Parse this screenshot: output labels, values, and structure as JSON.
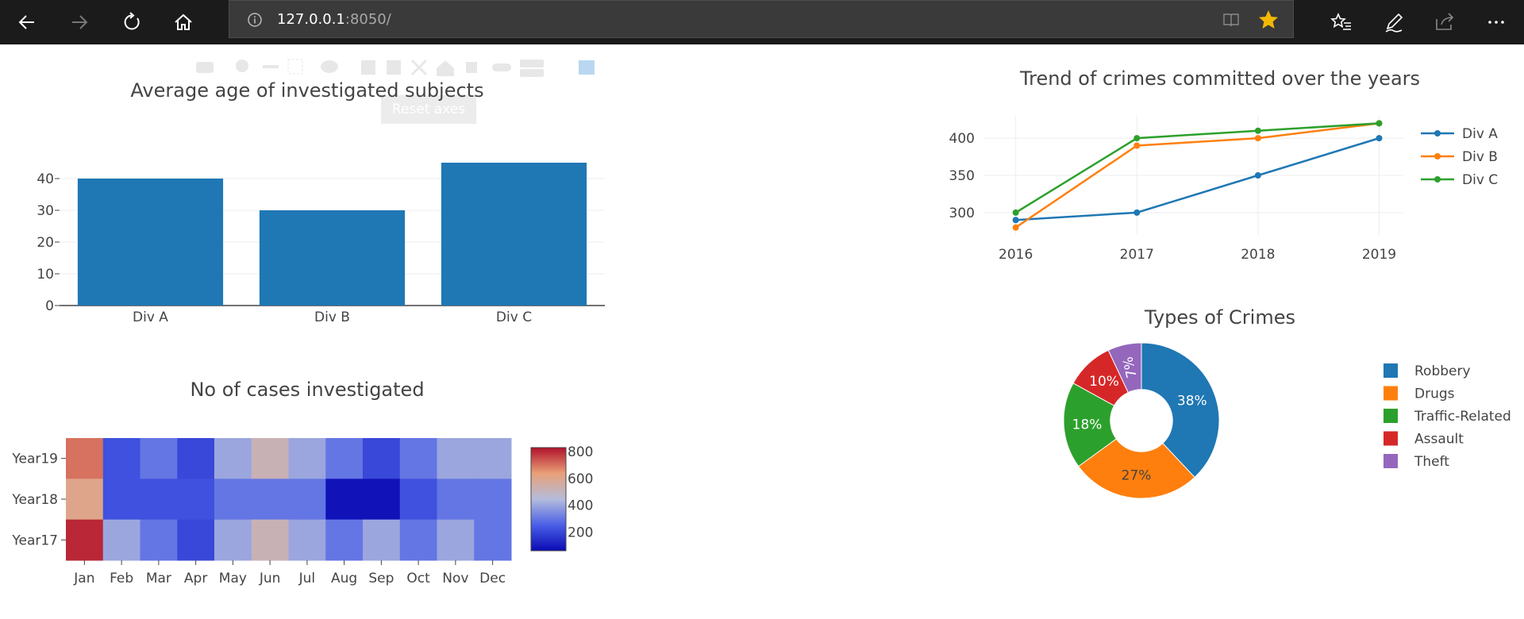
{
  "browser": {
    "url_host": "127.0.0.1",
    "url_rest": ":8050/",
    "icons": {
      "back": "arrow-left-icon",
      "forward": "arrow-right-icon",
      "refresh": "refresh-icon",
      "home": "home-icon",
      "info": "info-icon",
      "reader": "reading-view-icon",
      "favorite": "star-icon",
      "favorites": "favorites-list-icon",
      "notes": "pen-icon",
      "share": "share-icon",
      "more": "more-icon"
    },
    "colors": {
      "bar": "#1b1b1b",
      "address": "#3a3a3a",
      "star": "#f2b900"
    }
  },
  "plot_ui": {
    "reset_label": "Reset axes"
  },
  "chart_data": [
    {
      "type": "bar",
      "title": "Average age of investigated subjects",
      "categories": [
        "Div A",
        "Div B",
        "Div C"
      ],
      "values": [
        40,
        30,
        45
      ],
      "ylim": [
        0,
        46
      ],
      "yticks": [
        0,
        10,
        20,
        30,
        40
      ],
      "color": "#1f77b4",
      "grid": true
    },
    {
      "type": "line",
      "title": "Trend of crimes committed over the years",
      "x": [
        2016,
        2017,
        2018,
        2019
      ],
      "ylim": [
        270,
        430
      ],
      "yticks": [
        300,
        350,
        400
      ],
      "series": [
        {
          "name": "Div A",
          "values": [
            290,
            300,
            350,
            400
          ],
          "color": "#1f77b4"
        },
        {
          "name": "Div B",
          "values": [
            280,
            390,
            400,
            420
          ],
          "color": "#ff7f0e"
        },
        {
          "name": "Div C",
          "values": [
            300,
            400,
            410,
            420
          ],
          "color": "#2ca02c"
        }
      ],
      "legend": "top-right",
      "grid": true
    },
    {
      "type": "heatmap",
      "title": "No of cases investigated",
      "x": [
        "Jan",
        "Feb",
        "Mar",
        "Apr",
        "May",
        "Jun",
        "Jul",
        "Aug",
        "Sep",
        "Oct",
        "Nov",
        "Dec"
      ],
      "y": [
        "Year19",
        "Year18",
        "Year17"
      ],
      "z": [
        [
          700,
          220,
          300,
          200,
          400,
          520,
          400,
          300,
          200,
          300,
          400,
          400
        ],
        [
          600,
          220,
          220,
          220,
          300,
          300,
          300,
          80,
          80,
          220,
          300,
          300
        ],
        [
          800,
          400,
          300,
          200,
          400,
          520,
          400,
          300,
          400,
          300,
          400,
          300
        ]
      ],
      "zlim": [
        60,
        830
      ],
      "colorbar_ticks": [
        200,
        400,
        600,
        800
      ],
      "colorscale": [
        [
          0,
          "#0a0ab4"
        ],
        [
          0.25,
          "#4a5fe6"
        ],
        [
          0.5,
          "#b4bcdc"
        ],
        [
          0.75,
          "#e8a078"
        ],
        [
          1,
          "#b2112b"
        ]
      ]
    },
    {
      "type": "pie",
      "title": "Types of Crimes",
      "labels": [
        "Robbery",
        "Drugs",
        "Traffic-Related",
        "Assault",
        "Theft"
      ],
      "values": [
        38,
        27,
        18,
        10,
        7
      ],
      "text": [
        "38%",
        "27%",
        "18%",
        "10%",
        "7%"
      ],
      "colors": [
        "#1f77b4",
        "#ff7f0e",
        "#2ca02c",
        "#d62728",
        "#9467bd"
      ],
      "hole": 0.4,
      "legend": "right"
    }
  ]
}
